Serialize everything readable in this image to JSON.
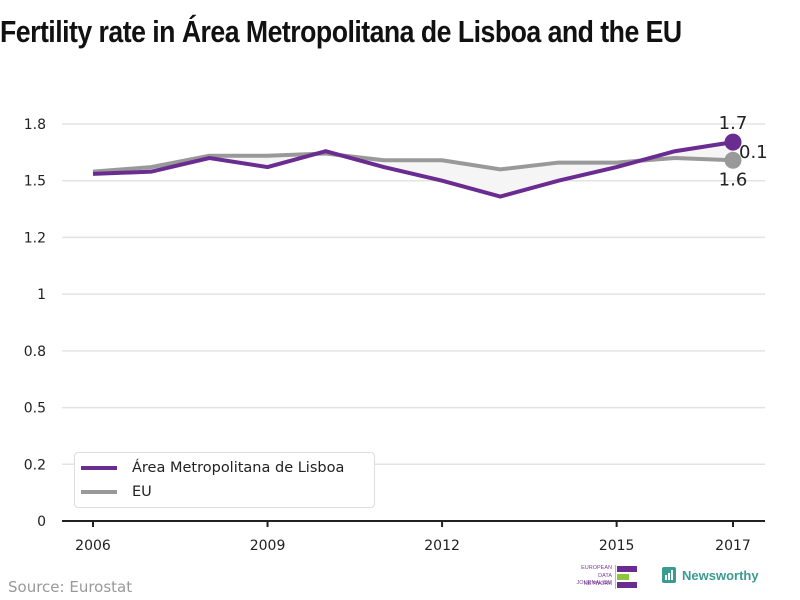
{
  "title": "Fertility rate in Área Metropolitana de Lisboa and the EU",
  "source": "Source: Eurostat",
  "logos": {
    "edjn_lines": [
      "EUROPEAN",
      "DATA JOURNALISM",
      "NETWORK"
    ],
    "newsworthy": "Newsworthy"
  },
  "colors": {
    "lisboa": "#6a2c91",
    "eu": "#999999",
    "grid": "#e3e3e3",
    "axis": "#222222",
    "area_fill": "#f5f5f5"
  },
  "chart_data": {
    "type": "line",
    "title": "Fertility rate in Área Metropolitana de Lisboa and the EU",
    "xlabel": "",
    "ylabel": "",
    "x": [
      2006,
      2007,
      2008,
      2009,
      2010,
      2011,
      2012,
      2013,
      2014,
      2015,
      2016,
      2017
    ],
    "xlim": [
      2006,
      2017
    ],
    "x_ticks": [
      2006,
      2009,
      2012,
      2015,
      2017
    ],
    "x_tick_labels": [
      "2006",
      "2009",
      "2012",
      "2015",
      "2017"
    ],
    "ylim": [
      0,
      1.75
    ],
    "y_ticks": [
      0,
      0.25,
      0.5,
      0.75,
      1,
      1.25,
      1.5,
      1.75
    ],
    "y_tick_labels": [
      "0",
      "0.2",
      "0.5",
      "0.8",
      "1",
      "1.2",
      "1.5",
      "1.8"
    ],
    "grid": true,
    "legend_position": "bottom-left",
    "series": [
      {
        "name": "Área Metropolitana de Lisboa",
        "color": "#6a2c91",
        "values": [
          1.53,
          1.54,
          1.6,
          1.56,
          1.63,
          1.56,
          1.5,
          1.43,
          1.5,
          1.56,
          1.63,
          1.67
        ]
      },
      {
        "name": "EU",
        "color": "#999999",
        "values": [
          1.54,
          1.56,
          1.61,
          1.61,
          1.62,
          1.59,
          1.59,
          1.55,
          1.58,
          1.58,
          1.6,
          1.59
        ]
      }
    ],
    "annotations": {
      "lisboa_end": "1.7",
      "eu_end": "1.6",
      "difference": "0.1"
    }
  }
}
